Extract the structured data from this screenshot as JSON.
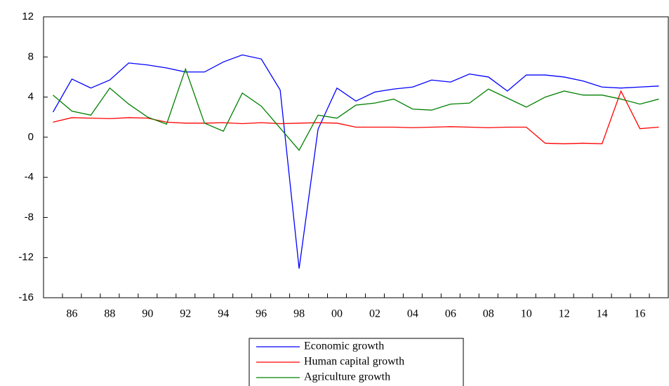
{
  "chart_data": {
    "type": "line",
    "categories": [
      null,
      "86",
      null,
      "88",
      null,
      "90",
      null,
      "92",
      null,
      "94",
      null,
      "96",
      null,
      "98",
      null,
      "00",
      null,
      "02",
      null,
      "04",
      null,
      "06",
      null,
      "08",
      null,
      "10",
      null,
      "12",
      null,
      "14",
      null,
      "16",
      null
    ],
    "series": [
      {
        "name": "Economic growth",
        "color": "#0000ff",
        "values": [
          2.5,
          5.8,
          4.9,
          5.7,
          7.4,
          7.2,
          6.9,
          6.5,
          6.5,
          7.5,
          8.2,
          7.8,
          4.7,
          -13.1,
          0.8,
          4.9,
          3.6,
          4.5,
          4.8,
          5.0,
          5.7,
          5.5,
          6.3,
          6.0,
          4.6,
          6.2,
          6.2,
          6.0,
          5.6,
          5.0,
          4.9,
          5.0,
          5.1
        ]
      },
      {
        "name": "Human capital growth",
        "color": "#ff0000",
        "values": [
          1.5,
          1.95,
          1.9,
          1.85,
          1.95,
          1.9,
          1.5,
          1.4,
          1.4,
          1.45,
          1.35,
          1.45,
          1.35,
          1.4,
          1.45,
          1.4,
          1.0,
          1.0,
          1.0,
          0.95,
          1.0,
          1.05,
          1.0,
          0.95,
          1.0,
          1.0,
          -0.6,
          -0.65,
          -0.6,
          -0.65,
          4.6,
          0.85,
          1.0
        ]
      },
      {
        "name": "Agriculture growth",
        "color": "#008000",
        "values": [
          4.2,
          2.6,
          2.2,
          4.9,
          3.3,
          2.0,
          1.3,
          6.8,
          1.4,
          0.6,
          4.4,
          3.1,
          0.9,
          -1.3,
          2.2,
          1.9,
          3.2,
          3.4,
          3.8,
          2.8,
          2.7,
          3.3,
          3.4,
          4.8,
          3.9,
          3.0,
          4.0,
          4.6,
          4.2,
          4.2,
          3.8,
          3.3,
          3.8
        ]
      }
    ],
    "ylim": [
      -16,
      12
    ],
    "yticks": [
      -16,
      -12,
      -8,
      -4,
      0,
      4,
      8,
      12
    ],
    "grid": false,
    "legend": "bottom"
  }
}
